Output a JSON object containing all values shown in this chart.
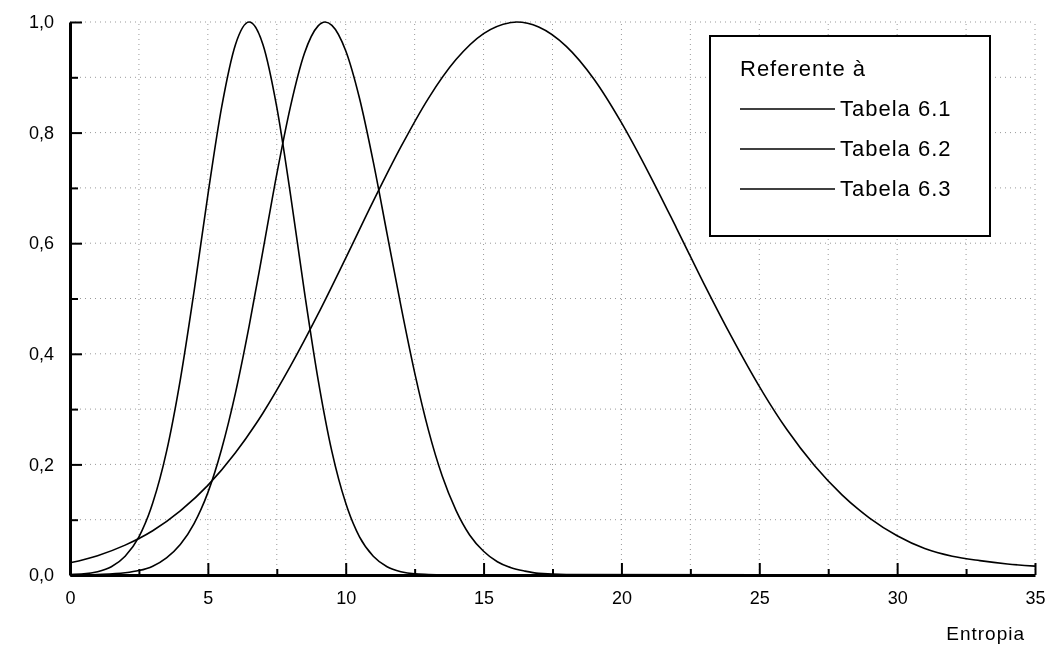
{
  "chart_data": {
    "type": "line",
    "xlabel": "Entropia",
    "legend_title": "Referente à",
    "legend": "top right",
    "grid": true,
    "line_style": "solid",
    "marker": "none",
    "xlim": [
      0,
      35
    ],
    "ylim": [
      0,
      1
    ],
    "xticks": [
      0,
      {
        "value": 2.5,
        "label": null
      },
      5,
      {
        "value": 7.5,
        "label": null
      },
      10,
      {
        "value": 12.5,
        "label": null
      },
      15,
      {
        "value": 17.5,
        "label": null
      },
      20,
      {
        "value": 22.5,
        "label": null
      },
      25,
      {
        "value": 27.5,
        "label": null
      },
      30,
      {
        "value": 32.5,
        "label": null
      },
      35
    ],
    "yticks": [
      {
        "value": 0,
        "label": "0,0"
      },
      {
        "value": 0.1,
        "label": null
      },
      {
        "value": 0.2,
        "label": "0,2"
      },
      {
        "value": 0.3,
        "label": null
      },
      {
        "value": 0.4,
        "label": "0,4"
      },
      {
        "value": 0.5,
        "label": null
      },
      {
        "value": 0.6,
        "label": "0,6"
      },
      {
        "value": 0.7,
        "label": null
      },
      {
        "value": 0.8,
        "label": "0,8"
      },
      {
        "value": 0.9,
        "label": null
      },
      {
        "value": 1,
        "label": "1,0"
      }
    ],
    "series": [
      {
        "name": "Tabela 6.1",
        "color": "#000000",
        "x": [
          0,
          0.5,
          1,
          1.5,
          2,
          2.5,
          3,
          3.5,
          4,
          4.5,
          5,
          5.5,
          6,
          6.5,
          7,
          7.5,
          8,
          8.5,
          9,
          9.5,
          10,
          10.5,
          11,
          11.5,
          12,
          12.5,
          13,
          14,
          35
        ],
        "values": [
          0.001,
          0.002,
          0.006,
          0.015,
          0.034,
          0.069,
          0.13,
          0.223,
          0.353,
          0.513,
          0.687,
          0.846,
          0.959,
          1,
          0.959,
          0.846,
          0.687,
          0.513,
          0.353,
          0.223,
          0.13,
          0.069,
          0.034,
          0.015,
          0.006,
          0.002,
          0.001,
          0,
          0
        ]
      },
      {
        "name": "Tabela 6.2",
        "color": "#000000",
        "x": [
          0,
          1,
          2,
          2.5,
          3,
          3.5,
          4,
          4.5,
          5,
          5.5,
          6,
          6.5,
          7,
          7.5,
          8,
          8.5,
          9,
          9.25,
          9.5,
          10,
          10.5,
          11,
          11.5,
          12,
          12.5,
          13,
          13.5,
          14,
          14.5,
          15,
          15.5,
          16,
          16.5,
          17,
          18,
          35
        ],
        "values": [
          0,
          0.001,
          0.004,
          0.008,
          0.016,
          0.031,
          0.055,
          0.093,
          0.149,
          0.228,
          0.329,
          0.451,
          0.587,
          0.725,
          0.848,
          0.943,
          0.993,
          1,
          0.994,
          0.948,
          0.862,
          0.747,
          0.617,
          0.487,
          0.366,
          0.262,
          0.179,
          0.117,
          0.072,
          0.043,
          0.024,
          0.013,
          0.007,
          0.003,
          0.001,
          0
        ]
      },
      {
        "name": "Tabela 6.3",
        "color": "#000000",
        "x": [
          0,
          1,
          2,
          3,
          4,
          5,
          6,
          7,
          8,
          9,
          10,
          11,
          12,
          13,
          14,
          15,
          16,
          16.2,
          17,
          18,
          19,
          20,
          21,
          22,
          23,
          24,
          25,
          26,
          27,
          28,
          29,
          30,
          31,
          32,
          33,
          34,
          35
        ],
        "values": [
          0.022,
          0.035,
          0.054,
          0.08,
          0.116,
          0.162,
          0.221,
          0.293,
          0.378,
          0.472,
          0.573,
          0.676,
          0.774,
          0.862,
          0.932,
          0.979,
          0.999,
          1,
          0.991,
          0.956,
          0.897,
          0.818,
          0.726,
          0.627,
          0.526,
          0.43,
          0.341,
          0.263,
          0.198,
          0.145,
          0.103,
          0.071,
          0.048,
          0.034,
          0.026,
          0.02,
          0.016
        ]
      }
    ]
  }
}
